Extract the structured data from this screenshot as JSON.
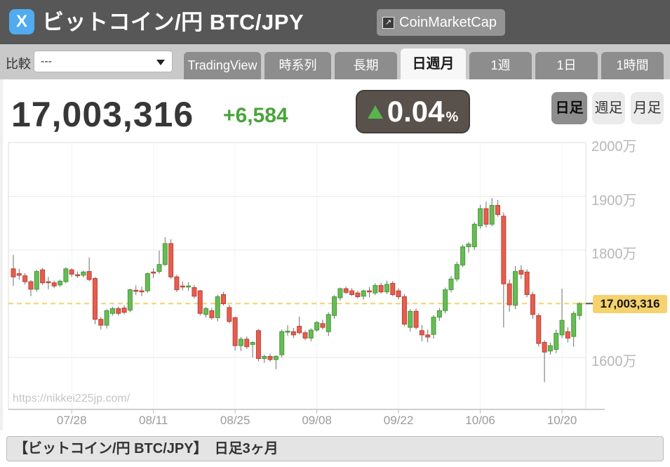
{
  "header": {
    "title": "ビットコイン/円 BTC/JPY",
    "x_button_glyph": "X",
    "coinmarketcap_label": "CoinMarketCap",
    "coinmarketcap_icon_glyph": "↗"
  },
  "toolbar": {
    "compare_label": "比較",
    "compare_value": "---",
    "tabs": [
      {
        "label": "TradingView",
        "active": false
      },
      {
        "label": "時系列",
        "active": false
      },
      {
        "label": "長期",
        "active": false
      },
      {
        "label": "日週月",
        "active": true
      },
      {
        "label": "1週",
        "active": false
      },
      {
        "label": "1日",
        "active": false
      },
      {
        "label": "1時間",
        "active": false
      }
    ]
  },
  "price_panel": {
    "price": "17,003,316",
    "change": "+6,584",
    "change_pct": "0.04",
    "pct_sign": "%",
    "direction": "up",
    "up_color": "#49a43b"
  },
  "interval_buttons": [
    {
      "label": "日足",
      "active": true
    },
    {
      "label": "週足",
      "active": false
    },
    {
      "label": "月足",
      "active": false
    }
  ],
  "watermark": "https://nikkei225jp.com/",
  "footer": {
    "caption": "【ビットコイン/円 BTC/JPY】　日足3ヶ月"
  },
  "chart_data": {
    "type": "candlestick",
    "title": "ビットコイン/円 BTC/JPY 日足3ヶ月",
    "unit": "values in 万円 (×10,000 JPY)",
    "current_price": 17003316,
    "current_price_label": "17,003,316",
    "price_line": {
      "value": 1700.3316,
      "color": "#f2d36b",
      "style": "dashed"
    },
    "grid": true,
    "ylim_visible": [
      1503,
      2000
    ],
    "y_ticks": [
      {
        "label": "2000万",
        "value": 2000
      },
      {
        "label": "1900万",
        "value": 1900
      },
      {
        "label": "1800万",
        "value": 1800
      },
      {
        "label": "1600万",
        "value": 1600
      }
    ],
    "x_ticks": [
      {
        "label": "07/28",
        "index": 10
      },
      {
        "label": "08/11",
        "index": 24
      },
      {
        "label": "08/25",
        "index": 38
      },
      {
        "label": "09/08",
        "index": 52
      },
      {
        "label": "09/22",
        "index": 66
      },
      {
        "label": "10/06",
        "index": 80
      },
      {
        "label": "10/20",
        "index": 94
      }
    ],
    "colors": {
      "up_fill": "#68bb55",
      "up_stroke": "#459a39",
      "down_fill": "#e75d4e",
      "down_stroke": "#b94236",
      "wick": "#6e6e6e"
    },
    "candles": [
      [
        "07/18",
        1765,
        1791,
        1733,
        1750
      ],
      [
        "07/19",
        1756,
        1765,
        1745,
        1753
      ],
      [
        "07/20",
        1752,
        1757,
        1736,
        1741
      ],
      [
        "07/21",
        1741,
        1744,
        1714,
        1727
      ],
      [
        "07/22",
        1727,
        1763,
        1722,
        1760
      ],
      [
        "07/23",
        1763,
        1767,
        1735,
        1739
      ],
      [
        "07/24",
        1741,
        1750,
        1727,
        1740
      ],
      [
        "07/25",
        1739,
        1743,
        1729,
        1733
      ],
      [
        "07/26",
        1735,
        1745,
        1731,
        1742
      ],
      [
        "07/27",
        1741,
        1768,
        1738,
        1765
      ],
      [
        "07/28",
        1763,
        1766,
        1750,
        1755
      ],
      [
        "07/29",
        1754,
        1760,
        1748,
        1753
      ],
      [
        "07/30",
        1753,
        1762,
        1749,
        1759
      ],
      [
        "07/31",
        1760,
        1786,
        1742,
        1745
      ],
      [
        "08/01",
        1747,
        1750,
        1662,
        1671
      ],
      [
        "08/02",
        1671,
        1675,
        1652,
        1660
      ],
      [
        "08/03",
        1660,
        1690,
        1654,
        1687
      ],
      [
        "08/04",
        1682,
        1694,
        1678,
        1691
      ],
      [
        "08/05",
        1691,
        1695,
        1678,
        1682
      ],
      [
        "08/06",
        1692,
        1697,
        1680,
        1684
      ],
      [
        "08/07",
        1688,
        1728,
        1684,
        1726
      ],
      [
        "08/08",
        1725,
        1734,
        1716,
        1724
      ],
      [
        "08/09",
        1724,
        1732,
        1714,
        1723
      ],
      [
        "08/10",
        1724,
        1758,
        1720,
        1756
      ],
      [
        "08/11",
        1759,
        1766,
        1748,
        1757
      ],
      [
        "08/12",
        1760,
        1799,
        1756,
        1773
      ],
      [
        "08/13",
        1773,
        1824,
        1770,
        1812
      ],
      [
        "08/14",
        1812,
        1820,
        1746,
        1750
      ],
      [
        "08/15",
        1750,
        1754,
        1722,
        1726
      ],
      [
        "08/16",
        1733,
        1741,
        1725,
        1732
      ],
      [
        "08/17",
        1733,
        1740,
        1724,
        1733
      ],
      [
        "08/18",
        1730,
        1735,
        1710,
        1714
      ],
      [
        "08/19",
        1724,
        1726,
        1678,
        1682
      ],
      [
        "08/20",
        1680,
        1694,
        1674,
        1691
      ],
      [
        "08/21",
        1687,
        1692,
        1670,
        1674
      ],
      [
        "08/22",
        1674,
        1717,
        1667,
        1713
      ],
      [
        "08/23",
        1717,
        1722,
        1697,
        1700
      ],
      [
        "08/24",
        1693,
        1698,
        1664,
        1667
      ],
      [
        "08/25",
        1674,
        1676,
        1613,
        1622
      ],
      [
        "08/26",
        1622,
        1638,
        1612,
        1634
      ],
      [
        "08/27",
        1634,
        1639,
        1616,
        1620
      ],
      [
        "08/28",
        1624,
        1630,
        1600,
        1628
      ],
      [
        "08/29",
        1650,
        1653,
        1593,
        1598
      ],
      [
        "08/30",
        1598,
        1605,
        1590,
        1602
      ],
      [
        "08/31",
        1602,
        1607,
        1592,
        1596
      ],
      [
        "09/01",
        1596,
        1604,
        1578,
        1602
      ],
      [
        "09/02",
        1605,
        1652,
        1600,
        1648
      ],
      [
        "09/03",
        1648,
        1660,
        1640,
        1649
      ],
      [
        "09/04",
        1648,
        1655,
        1636,
        1642
      ],
      [
        "09/05",
        1658,
        1676,
        1643,
        1646
      ],
      [
        "09/06",
        1646,
        1650,
        1632,
        1636
      ],
      [
        "09/07",
        1636,
        1654,
        1630,
        1651
      ],
      [
        "09/08",
        1651,
        1668,
        1648,
        1665
      ],
      [
        "09/09",
        1663,
        1670,
        1652,
        1656
      ],
      [
        "09/10",
        1648,
        1684,
        1640,
        1680
      ],
      [
        "09/11",
        1678,
        1716,
        1672,
        1713
      ],
      [
        "09/12",
        1711,
        1730,
        1706,
        1728
      ],
      [
        "09/13",
        1728,
        1732,
        1718,
        1721
      ],
      [
        "09/14",
        1724,
        1729,
        1714,
        1717
      ],
      [
        "09/15",
        1720,
        1724,
        1710,
        1713
      ],
      [
        "09/16",
        1714,
        1726,
        1708,
        1724
      ],
      [
        "09/17",
        1724,
        1731,
        1712,
        1722
      ],
      [
        "09/18",
        1720,
        1738,
        1716,
        1734
      ],
      [
        "09/19",
        1734,
        1739,
        1719,
        1722
      ],
      [
        "09/20",
        1722,
        1743,
        1718,
        1736
      ],
      [
        "09/21",
        1738,
        1742,
        1714,
        1717
      ],
      [
        "09/22",
        1724,
        1729,
        1708,
        1713
      ],
      [
        "09/23",
        1713,
        1718,
        1658,
        1662
      ],
      [
        "09/24",
        1656,
        1690,
        1648,
        1686
      ],
      [
        "09/25",
        1686,
        1691,
        1652,
        1656
      ],
      [
        "09/26",
        1650,
        1660,
        1630,
        1642
      ],
      [
        "09/27",
        1642,
        1652,
        1628,
        1638
      ],
      [
        "09/28",
        1643,
        1679,
        1635,
        1675
      ],
      [
        "09/29",
        1675,
        1692,
        1668,
        1687
      ],
      [
        "09/30",
        1687,
        1730,
        1682,
        1726
      ],
      [
        "10/01",
        1726,
        1752,
        1721,
        1746
      ],
      [
        "10/02",
        1746,
        1778,
        1741,
        1773
      ],
      [
        "10/03",
        1772,
        1810,
        1768,
        1806
      ],
      [
        "10/04",
        1806,
        1815,
        1795,
        1811
      ],
      [
        "10/05",
        1806,
        1852,
        1800,
        1848
      ],
      [
        "10/06",
        1845,
        1884,
        1840,
        1877
      ],
      [
        "10/07",
        1877,
        1890,
        1842,
        1848
      ],
      [
        "10/08",
        1848,
        1897,
        1844,
        1883
      ],
      [
        "10/09",
        1883,
        1893,
        1862,
        1866
      ],
      [
        "10/10",
        1863,
        1870,
        1656,
        1737
      ],
      [
        "10/11",
        1737,
        1745,
        1685,
        1698
      ],
      [
        "10/12",
        1697,
        1770,
        1690,
        1760
      ],
      [
        "10/13",
        1762,
        1772,
        1746,
        1755
      ],
      [
        "10/14",
        1759,
        1764,
        1712,
        1717
      ],
      [
        "10/15",
        1717,
        1722,
        1672,
        1680
      ],
      [
        "10/16",
        1678,
        1682,
        1620,
        1626
      ],
      [
        "10/17",
        1628,
        1632,
        1554,
        1610
      ],
      [
        "10/18",
        1612,
        1628,
        1605,
        1622
      ],
      [
        "10/19",
        1615,
        1652,
        1608,
        1645
      ],
      [
        "10/20",
        1642,
        1728,
        1636,
        1669
      ],
      [
        "10/21",
        1648,
        1656,
        1628,
        1636
      ],
      [
        "10/22",
        1639,
        1686,
        1620,
        1682
      ],
      [
        "10/23",
        1678,
        1703,
        1670,
        1700.3316
      ]
    ]
  }
}
